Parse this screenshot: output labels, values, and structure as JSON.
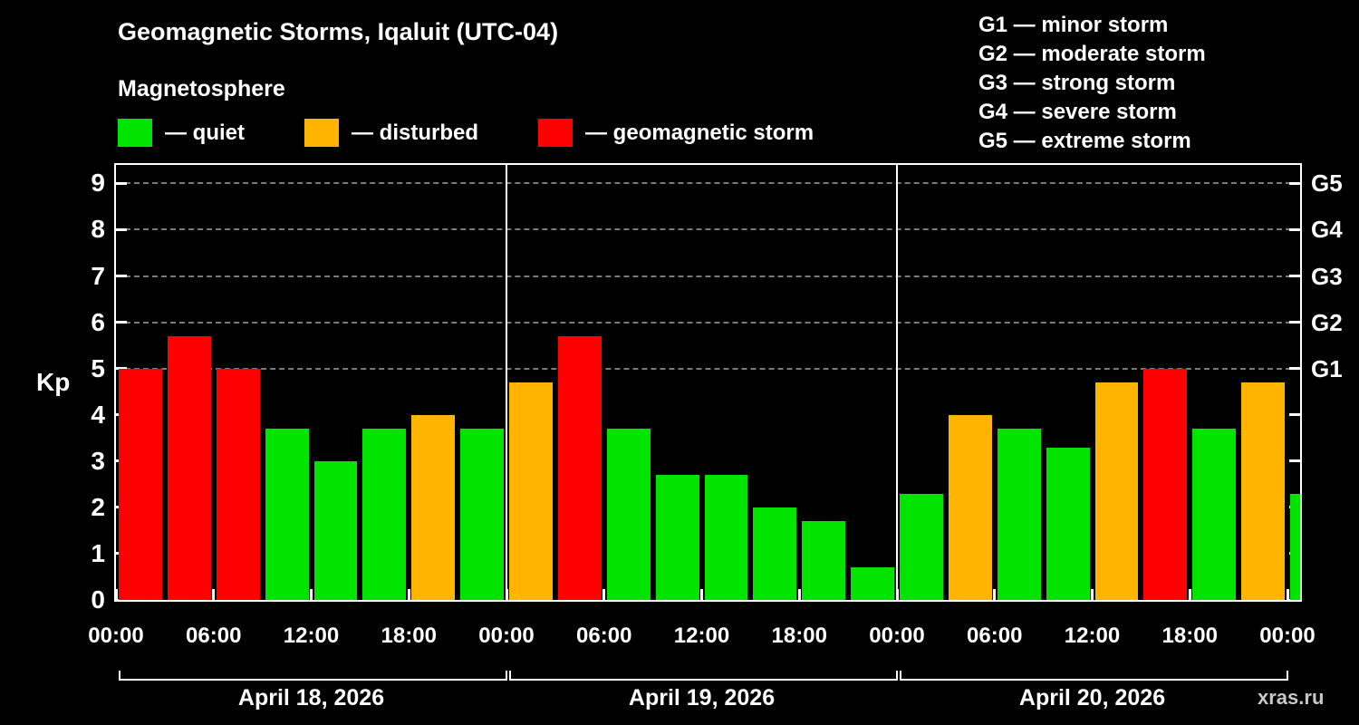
{
  "watermark": "xras.ru",
  "chart_data": {
    "type": "bar",
    "title": "Geomagnetic Storms, Iqaluit (UTC-04)",
    "subtitle": "Magnetosphere",
    "ylabel": "Kp",
    "ylim": [
      0,
      9.4
    ],
    "y_ticks": [
      0,
      1,
      2,
      3,
      4,
      5,
      6,
      7,
      8,
      9
    ],
    "g_gridlines": [
      5,
      6,
      7,
      8,
      9
    ],
    "right_labels": [
      {
        "kp": 5,
        "label": "G1"
      },
      {
        "kp": 6,
        "label": "G2"
      },
      {
        "kp": 7,
        "label": "G3"
      },
      {
        "kp": 8,
        "label": "G4"
      },
      {
        "kp": 9,
        "label": "G5"
      }
    ],
    "g_scale": [
      "G1 — minor storm",
      "G2 — moderate storm",
      "G3 — strong storm",
      "G4 — severe storm",
      "G5 — extreme storm"
    ],
    "legend": [
      {
        "key": "quiet",
        "label": "— quiet",
        "color": "#00e400"
      },
      {
        "key": "disturbed",
        "label": "— disturbed",
        "color": "#ffb400"
      },
      {
        "key": "storm",
        "label": "— geomagnetic storm",
        "color": "#ff0000"
      }
    ],
    "colors": {
      "quiet": "#00e400",
      "disturbed": "#ffb400",
      "storm": "#ff0000"
    },
    "x_tick_labels": [
      "00:00",
      "06:00",
      "12:00",
      "18:00",
      "00:00",
      "06:00",
      "12:00",
      "18:00",
      "00:00",
      "06:00",
      "12:00",
      "18:00",
      "00:00"
    ],
    "interval_hours": 3,
    "full_slots": 24,
    "days": [
      "April 18, 2026",
      "April 19, 2026",
      "April 20, 2026"
    ],
    "bars": [
      {
        "start": "Apr 18 00:00",
        "kp": 5.0,
        "status": "storm"
      },
      {
        "start": "Apr 18 03:00",
        "kp": 5.7,
        "status": "storm"
      },
      {
        "start": "Apr 18 06:00",
        "kp": 5.0,
        "status": "storm"
      },
      {
        "start": "Apr 18 09:00",
        "kp": 3.7,
        "status": "quiet"
      },
      {
        "start": "Apr 18 12:00",
        "kp": 3.0,
        "status": "quiet"
      },
      {
        "start": "Apr 18 15:00",
        "kp": 3.7,
        "status": "quiet"
      },
      {
        "start": "Apr 18 18:00",
        "kp": 4.0,
        "status": "disturbed"
      },
      {
        "start": "Apr 18 21:00",
        "kp": 3.7,
        "status": "quiet"
      },
      {
        "start": "Apr 19 00:00",
        "kp": 4.7,
        "status": "disturbed"
      },
      {
        "start": "Apr 19 03:00",
        "kp": 5.7,
        "status": "storm"
      },
      {
        "start": "Apr 19 06:00",
        "kp": 3.7,
        "status": "quiet"
      },
      {
        "start": "Apr 19 09:00",
        "kp": 2.7,
        "status": "quiet"
      },
      {
        "start": "Apr 19 12:00",
        "kp": 2.7,
        "status": "quiet"
      },
      {
        "start": "Apr 19 15:00",
        "kp": 2.0,
        "status": "quiet"
      },
      {
        "start": "Apr 19 18:00",
        "kp": 1.7,
        "status": "quiet"
      },
      {
        "start": "Apr 19 21:00",
        "kp": 0.7,
        "status": "quiet"
      },
      {
        "start": "Apr 20 00:00",
        "kp": 2.3,
        "status": "quiet"
      },
      {
        "start": "Apr 20 03:00",
        "kp": 4.0,
        "status": "disturbed"
      },
      {
        "start": "Apr 20 06:00",
        "kp": 3.7,
        "status": "quiet"
      },
      {
        "start": "Apr 20 09:00",
        "kp": 3.3,
        "status": "quiet"
      },
      {
        "start": "Apr 20 12:00",
        "kp": 4.7,
        "status": "disturbed"
      },
      {
        "start": "Apr 20 15:00",
        "kp": 5.0,
        "status": "storm"
      },
      {
        "start": "Apr 20 18:00",
        "kp": 3.7,
        "status": "quiet"
      },
      {
        "start": "Apr 20 21:00",
        "kp": 4.7,
        "status": "disturbed"
      },
      {
        "start": "Apr 21 00:00",
        "kp": 2.3,
        "status": "quiet",
        "partial": true
      }
    ]
  }
}
